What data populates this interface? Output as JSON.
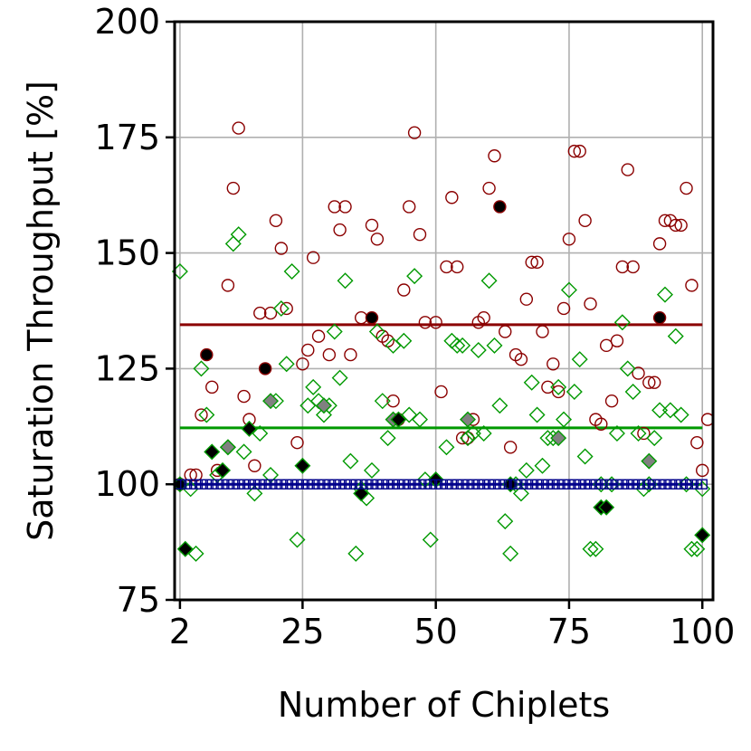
{
  "chart_data": {
    "type": "scatter",
    "title": "",
    "xlabel": "Number of Chiplets",
    "ylabel": "Saturation Throughput [%]",
    "xlim": [
      1,
      102
    ],
    "ylim": [
      75,
      200
    ],
    "xticks": [
      2,
      25,
      50,
      75,
      100
    ],
    "yticks": [
      75,
      100,
      125,
      150,
      175,
      200
    ],
    "grid": true,
    "colors": {
      "red": "#8b0000",
      "green": "#009900",
      "blue": "#00008b",
      "black": "#000000",
      "gray": "#808080"
    },
    "hlines": [
      {
        "y": 134.5,
        "color": "#8b0000"
      },
      {
        "y": 112.2,
        "color": "#009900"
      },
      {
        "y": 100.0,
        "color": "#00008b"
      }
    ],
    "series": [
      {
        "marker": "circle-open",
        "color": "#8b0000",
        "points": [
          [
            2,
            100
          ],
          [
            4,
            102
          ],
          [
            5,
            102
          ],
          [
            6,
            115
          ],
          [
            8,
            121
          ],
          [
            9,
            103
          ],
          [
            11,
            143
          ],
          [
            12,
            164
          ],
          [
            13,
            177
          ],
          [
            14,
            119
          ],
          [
            15,
            114
          ],
          [
            16,
            104
          ],
          [
            17,
            137
          ],
          [
            19,
            137
          ],
          [
            20,
            157
          ],
          [
            21,
            151
          ],
          [
            22,
            138
          ],
          [
            24,
            109
          ],
          [
            25,
            126
          ],
          [
            26,
            129
          ],
          [
            27,
            149
          ],
          [
            28,
            132
          ],
          [
            30,
            128
          ],
          [
            31,
            160
          ],
          [
            32,
            155
          ],
          [
            33,
            160
          ],
          [
            34,
            128
          ],
          [
            36,
            136
          ],
          [
            38,
            156
          ],
          [
            39,
            153
          ],
          [
            40,
            132
          ],
          [
            41,
            131
          ],
          [
            42,
            118
          ],
          [
            43,
            114
          ],
          [
            44,
            142
          ],
          [
            45,
            160
          ],
          [
            46,
            176
          ],
          [
            47,
            154
          ],
          [
            48,
            135
          ],
          [
            50,
            135
          ],
          [
            51,
            120
          ],
          [
            52,
            147
          ],
          [
            53,
            162
          ],
          [
            54,
            147
          ],
          [
            55,
            110
          ],
          [
            56,
            110
          ],
          [
            57,
            114
          ],
          [
            58,
            135
          ],
          [
            59,
            136
          ],
          [
            60,
            164
          ],
          [
            61,
            171
          ],
          [
            63,
            133
          ],
          [
            64,
            108
          ],
          [
            65,
            128
          ],
          [
            66,
            127
          ],
          [
            67,
            140
          ],
          [
            68,
            148
          ],
          [
            69,
            148
          ],
          [
            70,
            133
          ],
          [
            71,
            121
          ],
          [
            72,
            126
          ],
          [
            73,
            120
          ],
          [
            74,
            138
          ],
          [
            75,
            153
          ],
          [
            76,
            172
          ],
          [
            77,
            172
          ],
          [
            78,
            157
          ],
          [
            79,
            139
          ],
          [
            80,
            114
          ],
          [
            81,
            113
          ],
          [
            82,
            130
          ],
          [
            83,
            118
          ],
          [
            84,
            131
          ],
          [
            85,
            147
          ],
          [
            86,
            168
          ],
          [
            87,
            147
          ],
          [
            88,
            124
          ],
          [
            89,
            111
          ],
          [
            90,
            122
          ],
          [
            91,
            122
          ],
          [
            92,
            152
          ],
          [
            93,
            157
          ],
          [
            94,
            157
          ],
          [
            95,
            156
          ],
          [
            96,
            156
          ],
          [
            97,
            164
          ],
          [
            98,
            143
          ],
          [
            99,
            109
          ],
          [
            100,
            103
          ],
          [
            101,
            114
          ]
        ]
      },
      {
        "marker": "circle-filled",
        "color": "#000000",
        "points": [
          [
            7,
            128
          ],
          [
            18,
            125
          ],
          [
            38,
            136
          ],
          [
            62,
            160
          ],
          [
            92,
            136
          ]
        ]
      },
      {
        "marker": "diamond-open",
        "color": "#009900",
        "points": [
          [
            2,
            146
          ],
          [
            4,
            99
          ],
          [
            5,
            85
          ],
          [
            6,
            125
          ],
          [
            7,
            115
          ],
          [
            9,
            102
          ],
          [
            11,
            108
          ],
          [
            12,
            152
          ],
          [
            13,
            154
          ],
          [
            14,
            107
          ],
          [
            16,
            98
          ],
          [
            17,
            111
          ],
          [
            19,
            102
          ],
          [
            20,
            118
          ],
          [
            21,
            138
          ],
          [
            22,
            126
          ],
          [
            23,
            146
          ],
          [
            24,
            88
          ],
          [
            26,
            117
          ],
          [
            27,
            121
          ],
          [
            28,
            118
          ],
          [
            29,
            115
          ],
          [
            30,
            117
          ],
          [
            31,
            133
          ],
          [
            32,
            123
          ],
          [
            33,
            144
          ],
          [
            34,
            105
          ],
          [
            35,
            85
          ],
          [
            36,
            99
          ],
          [
            37,
            97
          ],
          [
            38,
            103
          ],
          [
            39,
            133
          ],
          [
            40,
            118
          ],
          [
            41,
            110
          ],
          [
            42,
            130
          ],
          [
            44,
            131
          ],
          [
            45,
            115
          ],
          [
            46,
            145
          ],
          [
            47,
            114
          ],
          [
            48,
            101
          ],
          [
            49,
            88
          ],
          [
            50,
            101
          ],
          [
            52,
            108
          ],
          [
            53,
            131
          ],
          [
            54,
            130
          ],
          [
            55,
            130
          ],
          [
            56,
            110
          ],
          [
            57,
            111
          ],
          [
            58,
            129
          ],
          [
            59,
            111
          ],
          [
            60,
            144
          ],
          [
            61,
            130
          ],
          [
            62,
            117
          ],
          [
            63,
            92
          ],
          [
            64,
            85
          ],
          [
            65,
            100
          ],
          [
            66,
            98
          ],
          [
            67,
            103
          ],
          [
            68,
            122
          ],
          [
            69,
            115
          ],
          [
            70,
            104
          ],
          [
            71,
            110
          ],
          [
            72,
            110
          ],
          [
            73,
            121
          ],
          [
            74,
            114
          ],
          [
            75,
            142
          ],
          [
            76,
            120
          ],
          [
            77,
            127
          ],
          [
            78,
            106
          ],
          [
            79,
            86
          ],
          [
            80,
            86
          ],
          [
            81,
            100
          ],
          [
            83,
            100
          ],
          [
            84,
            111
          ],
          [
            85,
            135
          ],
          [
            86,
            125
          ],
          [
            87,
            120
          ],
          [
            88,
            111
          ],
          [
            89,
            99
          ],
          [
            90,
            100
          ],
          [
            91,
            110
          ],
          [
            92,
            116
          ],
          [
            93,
            141
          ],
          [
            94,
            116
          ],
          [
            95,
            132
          ],
          [
            96,
            115
          ],
          [
            97,
            100
          ],
          [
            98,
            86
          ],
          [
            99,
            86
          ],
          [
            100,
            99
          ]
        ]
      },
      {
        "marker": "diamond-filled",
        "color": "#808080",
        "points": [
          [
            11,
            108
          ],
          [
            19,
            118
          ],
          [
            29,
            117
          ],
          [
            42,
            114
          ],
          [
            56,
            114
          ],
          [
            73,
            110
          ],
          [
            90,
            105
          ]
        ]
      },
      {
        "marker": "diamond-filled-black",
        "color": "#000000",
        "points": [
          [
            2,
            100
          ],
          [
            3,
            86
          ],
          [
            8,
            107
          ],
          [
            10,
            103
          ],
          [
            15,
            112
          ],
          [
            25,
            104
          ],
          [
            36,
            98
          ],
          [
            43,
            114
          ],
          [
            50,
            101
          ],
          [
            64,
            100
          ],
          [
            81,
            95
          ],
          [
            82,
            95
          ],
          [
            100,
            89
          ]
        ]
      },
      {
        "marker": "square-open",
        "color": "#00008b",
        "points": [
          [
            2,
            100
          ],
          [
            3,
            100
          ],
          [
            4,
            100
          ],
          [
            5,
            100
          ],
          [
            6,
            100
          ],
          [
            7,
            100
          ],
          [
            8,
            100
          ],
          [
            9,
            100
          ],
          [
            10,
            100
          ],
          [
            11,
            100
          ],
          [
            12,
            100
          ],
          [
            13,
            100
          ],
          [
            14,
            100
          ],
          [
            15,
            100
          ],
          [
            16,
            100
          ],
          [
            17,
            100
          ],
          [
            18,
            100
          ],
          [
            19,
            100
          ],
          [
            20,
            100
          ],
          [
            21,
            100
          ],
          [
            22,
            100
          ],
          [
            23,
            100
          ],
          [
            24,
            100
          ],
          [
            25,
            100
          ],
          [
            26,
            100
          ],
          [
            27,
            100
          ],
          [
            28,
            100
          ],
          [
            29,
            100
          ],
          [
            30,
            100
          ],
          [
            31,
            100
          ],
          [
            32,
            100
          ],
          [
            33,
            100
          ],
          [
            34,
            100
          ],
          [
            35,
            100
          ],
          [
            36,
            100
          ],
          [
            37,
            100
          ],
          [
            38,
            100
          ],
          [
            39,
            100
          ],
          [
            40,
            100
          ],
          [
            41,
            100
          ],
          [
            42,
            100
          ],
          [
            43,
            100
          ],
          [
            44,
            100
          ],
          [
            45,
            100
          ],
          [
            46,
            100
          ],
          [
            47,
            100
          ],
          [
            48,
            100
          ],
          [
            49,
            100
          ],
          [
            50,
            100
          ],
          [
            51,
            100
          ],
          [
            52,
            100
          ],
          [
            53,
            100
          ],
          [
            54,
            100
          ],
          [
            55,
            100
          ],
          [
            56,
            100
          ],
          [
            57,
            100
          ],
          [
            58,
            100
          ],
          [
            59,
            100
          ],
          [
            60,
            100
          ],
          [
            61,
            100
          ],
          [
            62,
            100
          ],
          [
            63,
            100
          ],
          [
            64,
            100
          ],
          [
            65,
            100
          ],
          [
            66,
            100
          ],
          [
            67,
            100
          ],
          [
            68,
            100
          ],
          [
            69,
            100
          ],
          [
            70,
            100
          ],
          [
            71,
            100
          ],
          [
            72,
            100
          ],
          [
            73,
            100
          ],
          [
            74,
            100
          ],
          [
            75,
            100
          ],
          [
            76,
            100
          ],
          [
            77,
            100
          ],
          [
            78,
            100
          ],
          [
            79,
            100
          ],
          [
            80,
            100
          ],
          [
            81,
            100
          ],
          [
            82,
            100
          ],
          [
            83,
            100
          ],
          [
            84,
            100
          ],
          [
            85,
            100
          ],
          [
            86,
            100
          ],
          [
            87,
            100
          ],
          [
            88,
            100
          ],
          [
            89,
            100
          ],
          [
            90,
            100
          ],
          [
            91,
            100
          ],
          [
            92,
            100
          ],
          [
            93,
            100
          ],
          [
            94,
            100
          ],
          [
            95,
            100
          ],
          [
            96,
            100
          ],
          [
            97,
            100
          ],
          [
            98,
            100
          ],
          [
            99,
            100
          ],
          [
            100,
            100
          ]
        ]
      }
    ]
  }
}
